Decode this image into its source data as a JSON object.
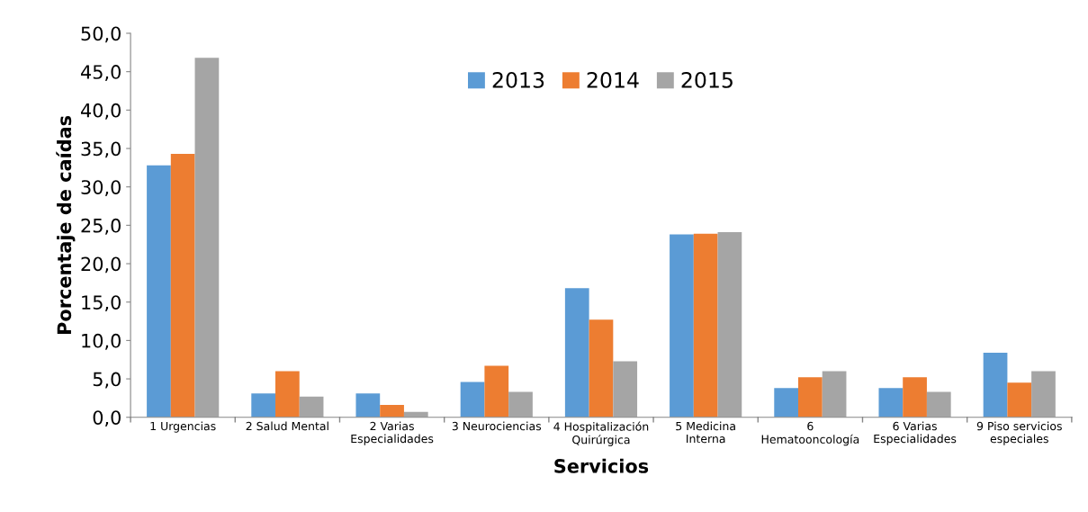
{
  "chart_data": {
    "type": "bar",
    "xlabel": "Servicios",
    "ylabel": "Porcentaje de caídas",
    "categories": [
      "1 Urgencias",
      "2 Salud Mental",
      "2 Varias\nEspecialidades",
      "3 Neurociencias",
      "4 Hospitalización\nQuirúrgica",
      "5 Medicina\nInterna",
      "6\nHematooncología",
      "6 Varias\nEspecialidades",
      "9 Piso servicios\nespeciales"
    ],
    "series": [
      {
        "name": "2013",
        "color": "#5b9bd5",
        "values": [
          32.8,
          3.1,
          3.1,
          4.6,
          16.8,
          23.8,
          3.8,
          3.8,
          8.4
        ]
      },
      {
        "name": "2014",
        "color": "#ed7d31",
        "values": [
          34.3,
          6.0,
          1.6,
          6.7,
          12.7,
          23.9,
          5.2,
          5.2,
          4.5
        ]
      },
      {
        "name": "2015",
        "color": "#a5a5a5",
        "values": [
          46.8,
          2.7,
          0.7,
          3.3,
          7.3,
          24.1,
          6.0,
          3.3,
          6.0
        ]
      }
    ],
    "ylim": [
      0,
      50
    ],
    "yticks": [
      {
        "value": 0,
        "label": "0,0"
      },
      {
        "value": 5,
        "label": "5,0"
      },
      {
        "value": 10,
        "label": "10,0"
      },
      {
        "value": 15,
        "label": "15,0"
      },
      {
        "value": 20,
        "label": "20,0"
      },
      {
        "value": 25,
        "label": "25,0"
      },
      {
        "value": 30,
        "label": "30,0"
      },
      {
        "value": 35,
        "label": "35,0"
      },
      {
        "value": 40,
        "label": "40,0"
      },
      {
        "value": 45,
        "label": "45,0"
      },
      {
        "value": 50,
        "label": "50,0"
      }
    ],
    "grid": false,
    "legend": "top"
  }
}
